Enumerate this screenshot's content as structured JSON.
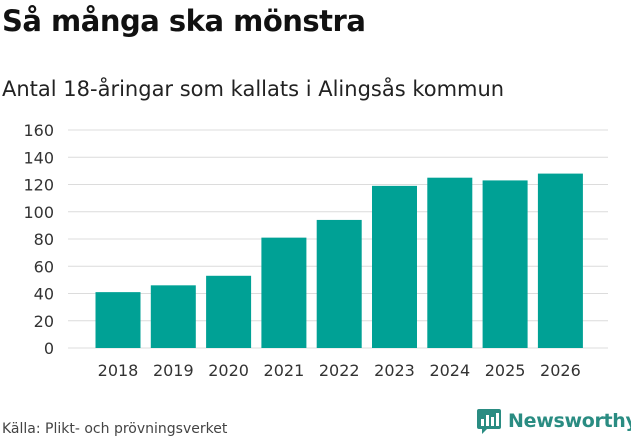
{
  "header": {
    "title": "Så många ska mönstra",
    "subtitle": "Antal 18-åringar som kallats i Alingsås kommun"
  },
  "footer": {
    "source": "Källa: Plikt- och prövningsverket",
    "brand": "Newsworthy"
  },
  "colors": {
    "bar": "#00a195",
    "grid": "#dcdcdc",
    "brand": "#2a8c82"
  },
  "chart_data": {
    "type": "bar",
    "title": "Så många ska mönstra",
    "subtitle": "Antal 18-åringar som kallats i Alingsås kommun",
    "xlabel": "",
    "ylabel": "",
    "categories": [
      "2018",
      "2019",
      "2020",
      "2021",
      "2022",
      "2023",
      "2024",
      "2025",
      "2026"
    ],
    "values": [
      41,
      46,
      53,
      81,
      94,
      119,
      125,
      123,
      128
    ],
    "ylim": [
      0,
      160
    ],
    "yticks": [
      "0",
      "20",
      "40",
      "60",
      "80",
      "100",
      "120",
      "140",
      "160"
    ],
    "grid": true,
    "legend": "none"
  }
}
